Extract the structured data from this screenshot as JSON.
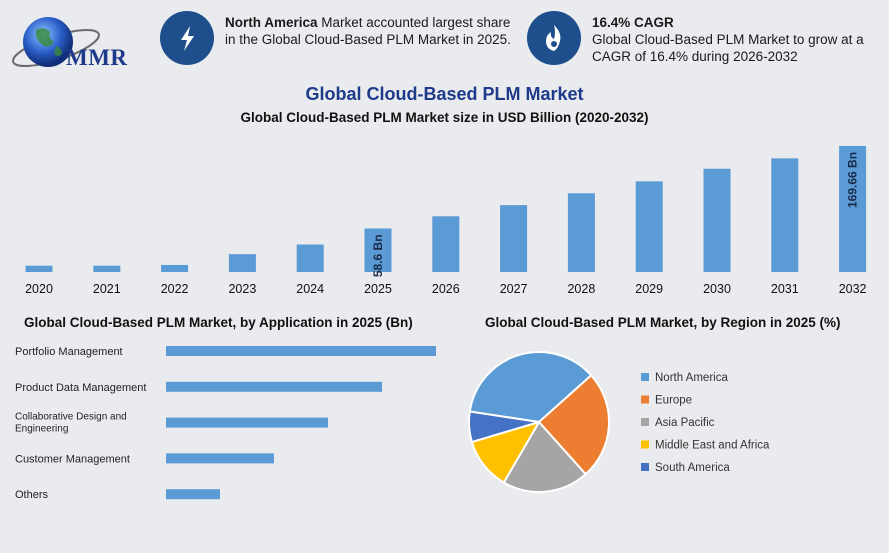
{
  "brand": {
    "logo_text": "MMR"
  },
  "info_cards": [
    {
      "icon": "lightning-icon",
      "bold": "North America",
      "text": " Market accounted largest share in the Global Cloud-Based PLM Market in 2025."
    },
    {
      "icon": "flame-icon",
      "bold": "16.4% CAGR",
      "text": "Global Cloud-Based PLM Market to grow at a CAGR of 16.4% during 2026-2032"
    }
  ],
  "titles": {
    "main": "Global Cloud-Based PLM Market",
    "sub": "Global Cloud-Based PLM Market size in USD Billion (2020-2032)",
    "application": "Global Cloud-Based PLM Market, by Application in 2025 (Bn)",
    "region": "Global Cloud-Based PLM Market, by Region in 2025 (%)"
  },
  "colors": {
    "bar": "#5b9bd5",
    "title": "#1e3a8a",
    "background": "#e9ebee"
  },
  "chart_data": [
    {
      "type": "bar",
      "title": "Global Cloud-Based PLM Market size in USD Billion (2020-2032)",
      "categories": [
        "2020",
        "2021",
        "2022",
        "2023",
        "2024",
        "2025",
        "2026",
        "2027",
        "2028",
        "2029",
        "2030",
        "2031",
        "2032"
      ],
      "values": [
        8.5,
        8.5,
        9.5,
        24,
        37,
        58.6,
        75,
        90,
        106,
        122,
        139,
        153,
        169.66
      ],
      "data_labels": {
        "2025": "58.6 Bn",
        "2032": "169.66 Bn"
      },
      "ylim": [
        0,
        175
      ],
      "grid": false
    },
    {
      "type": "bar",
      "orientation": "horizontal",
      "title": "Global Cloud-Based PLM Market, by Application in 2025 (Bn)",
      "categories": [
        "Portfolio Management",
        "Product Data Management",
        "Collaborative Design and Engineering",
        "Customer Management",
        "Others"
      ],
      "values": [
        20,
        16,
        12,
        8,
        4
      ],
      "grid": false
    },
    {
      "type": "pie",
      "title": "Global Cloud-Based PLM Market, by Region in 2025 (%)",
      "categories": [
        "North America",
        "Europe",
        "Asia Pacific",
        "Middle East and Africa",
        "South America"
      ],
      "values": [
        36,
        25,
        20,
        12,
        7
      ],
      "colors": [
        "#5b9bd5",
        "#ed7d31",
        "#a5a5a5",
        "#ffc000",
        "#4472c4"
      ],
      "legend": "right"
    }
  ]
}
